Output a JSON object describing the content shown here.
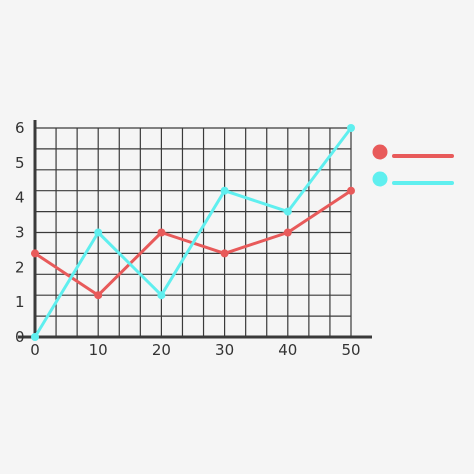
{
  "chart_data": {
    "type": "line",
    "x": [
      0,
      10,
      20,
      30,
      40,
      50
    ],
    "xlim": [
      0,
      50
    ],
    "ylim": [
      0,
      6
    ],
    "x_ticks": [
      "0",
      "10",
      "20",
      "30",
      "40",
      "50"
    ],
    "y_ticks": [
      "0",
      "1",
      "2",
      "3",
      "4",
      "5",
      "6"
    ],
    "grid": true,
    "legend_position": "right",
    "series": [
      {
        "color": "#e85a5a",
        "values": [
          2.4,
          1.2,
          3.0,
          2.4,
          3.0,
          4.2
        ]
      },
      {
        "color": "#5fefef",
        "values": [
          0.0,
          3.0,
          1.2,
          4.2,
          3.6,
          6.0
        ]
      }
    ]
  }
}
